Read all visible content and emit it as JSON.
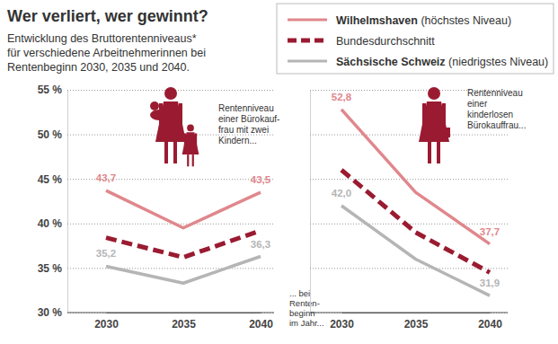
{
  "chart_data": [
    {
      "type": "line",
      "title": "Wer verliert, wer gewinnt?",
      "subtitle": [
        "Entwicklung des Bruttorentenniveaus*",
        "für verschiedene Arbeitnehmerinnen bei",
        "Rentenbeginn 2030, 2035 und 2040."
      ],
      "annotation": [
        "Rentenniveau",
        "einer Bürokauf-",
        "frau mit zwei",
        "Kindern..."
      ],
      "xlabel": [
        "... bei",
        "Renten-",
        "beginn",
        "im Jahr..."
      ],
      "categories": [
        "2030",
        "2035",
        "2040"
      ],
      "ylim": [
        30,
        55
      ],
      "yticks": [
        {
          "value": 30,
          "label": "30 %"
        },
        {
          "value": 35,
          "label": "35 %"
        },
        {
          "value": 40,
          "label": "40 %"
        },
        {
          "value": 45,
          "label": "45 %"
        },
        {
          "value": 50,
          "label": "50 %"
        },
        {
          "value": 55,
          "label": "55 %"
        }
      ],
      "grid": true,
      "legend": "top-right",
      "data_labels": true,
      "series": [
        {
          "name": "Wilhelmshaven (höchstes Niveau)",
          "color": "#e0878c",
          "line_style": "solid",
          "values": [
            43.7,
            39.5,
            43.5
          ],
          "value_labels": [
            "43,7",
            null,
            "43,5"
          ]
        },
        {
          "name": "Bundesdurchschnitt",
          "color": "#9a1b31",
          "line_style": "dashed",
          "values": [
            38.4,
            36.2,
            39.2
          ]
        },
        {
          "name": "Sächsische Schweiz (niedrigstes Niveau)",
          "color": "#b5b5b5",
          "line_style": "solid",
          "values": [
            35.2,
            33.3,
            36.3
          ],
          "value_labels": [
            "35,2",
            null,
            "36,3"
          ]
        }
      ]
    },
    {
      "type": "line",
      "annotation": [
        "Rentenniveau",
        "einer",
        "kinderlosen",
        "Bürokauffrau..."
      ],
      "categories": [
        "2030",
        "2035",
        "2040"
      ],
      "ylim": [
        30,
        55
      ],
      "yticks": [
        30,
        35,
        40,
        45,
        50,
        55
      ],
      "tick_labels": "x",
      "grid": true,
      "data_labels": true,
      "series": [
        {
          "color": "#e0878c",
          "line_style": "solid",
          "values": [
            52.8,
            43.5,
            37.7
          ],
          "value_labels": [
            "52,8",
            null,
            "37,7"
          ]
        },
        {
          "color": "#9a1b31",
          "line_style": "dashed",
          "values": [
            46.0,
            39.0,
            34.5
          ]
        },
        {
          "color": "#b5b5b5",
          "line_style": "solid",
          "values": [
            42.0,
            36.0,
            31.9
          ],
          "value_labels": [
            "42,0",
            null,
            "31,9"
          ]
        }
      ]
    }
  ]
}
